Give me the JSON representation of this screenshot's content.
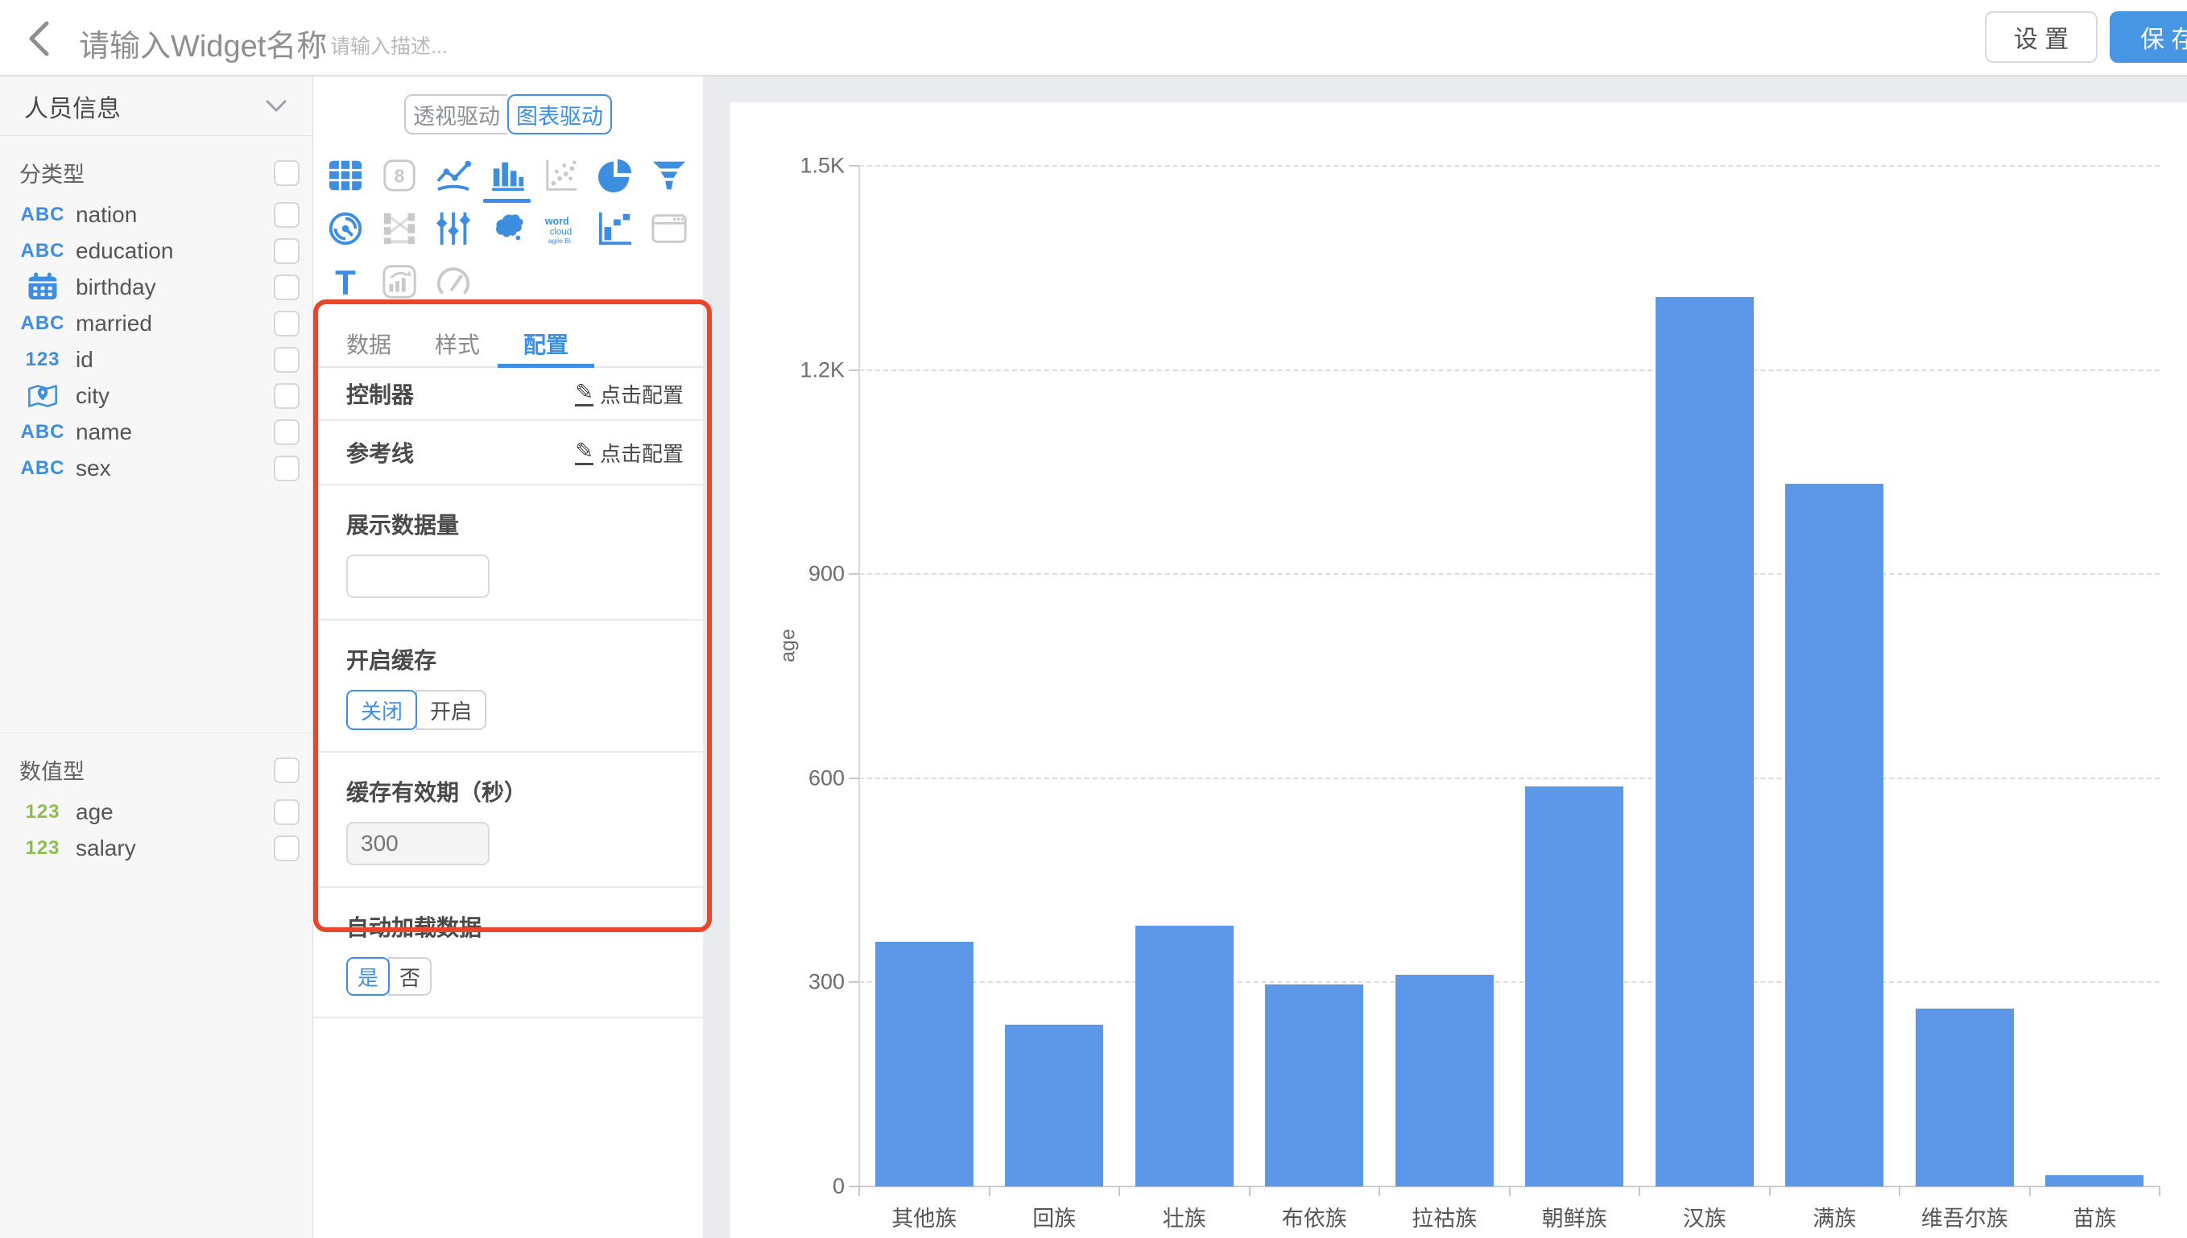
{
  "header": {
    "title_placeholder": "请输入Widget名称",
    "desc_placeholder": "请输入描述...",
    "settings_label": "设 置",
    "save_label": "保 存"
  },
  "sidebar": {
    "dataset_name": "人员信息",
    "sections": [
      {
        "label": "分类型",
        "fields": [
          {
            "name": "nation",
            "type": "abc",
            "color": "#3d8ee0"
          },
          {
            "name": "education",
            "type": "abc",
            "color": "#3d8ee0"
          },
          {
            "name": "birthday",
            "type": "calendar",
            "color": "#3d8ee0"
          },
          {
            "name": "married",
            "type": "abc",
            "color": "#3d8ee0"
          },
          {
            "name": "id",
            "type": "num",
            "color": "#3d8ee0"
          },
          {
            "name": "city",
            "type": "geo",
            "color": "#3d8ee0"
          },
          {
            "name": "name",
            "type": "abc",
            "color": "#3d8ee0"
          },
          {
            "name": "sex",
            "type": "abc",
            "color": "#3d8ee0"
          }
        ]
      },
      {
        "label": "数值型",
        "fields": [
          {
            "name": "age",
            "type": "num",
            "color": "#8cbf4a"
          },
          {
            "name": "salary",
            "type": "num",
            "color": "#8cbf4a"
          }
        ]
      }
    ]
  },
  "panel": {
    "modes": [
      "透视驱动",
      "图表驱动"
    ],
    "selected_mode_index": 1,
    "chart_types": [
      {
        "name": "table",
        "state": "enabled"
      },
      {
        "name": "number",
        "state": "disabled"
      },
      {
        "name": "line",
        "state": "enabled"
      },
      {
        "name": "bar",
        "state": "selected"
      },
      {
        "name": "scatter",
        "state": "disabled"
      },
      {
        "name": "pie",
        "state": "enabled"
      },
      {
        "name": "funnel",
        "state": "enabled"
      },
      {
        "name": "radar",
        "state": "enabled"
      },
      {
        "name": "sankey",
        "state": "disabled"
      },
      {
        "name": "parallel",
        "state": "enabled"
      },
      {
        "name": "china-map",
        "state": "enabled"
      },
      {
        "name": "wordcloud",
        "state": "enabled"
      },
      {
        "name": "waterfall",
        "state": "enabled"
      },
      {
        "name": "iframe",
        "state": "disabled"
      },
      {
        "name": "text",
        "state": "enabled"
      },
      {
        "name": "richtext",
        "state": "disabled"
      },
      {
        "name": "gauge",
        "state": "disabled"
      }
    ],
    "tabs": [
      "数据",
      "样式",
      "配置"
    ],
    "active_tab_index": 2,
    "controller": {
      "label": "控制器",
      "link": "点击配置"
    },
    "reference_line": {
      "label": "参考线",
      "link": "点击配置"
    },
    "display_count": {
      "label": "展示数据量",
      "value": ""
    },
    "cache_toggle": {
      "label": "开启缓存",
      "options": [
        "关闭",
        "开启"
      ],
      "selected_index": 0
    },
    "cache_expiry": {
      "label": "缓存有效期（秒）",
      "placeholder": "300",
      "disabled": true
    },
    "auto_load": {
      "label": "自动加载数据",
      "options": [
        "是",
        "否"
      ],
      "selected_index": 0
    }
  },
  "annotation": {
    "highlight_color": "#e8472e"
  },
  "chart_data": {
    "type": "bar",
    "title": "",
    "categories": [
      "其他族",
      "回族",
      "壮族",
      "布依族",
      "拉祜族",
      "朝鲜族",
      "汉族",
      "满族",
      "维吾尔族",
      "苗族"
    ],
    "values": [
      360,
      238,
      383,
      297,
      311,
      588,
      1307,
      1033,
      262,
      16
    ],
    "xlabel": "",
    "ylabel": "age",
    "ylim": [
      0,
      1500
    ],
    "yticks": [
      {
        "v": 0,
        "label": "0"
      },
      {
        "v": 300,
        "label": "300"
      },
      {
        "v": 600,
        "label": "600"
      },
      {
        "v": 900,
        "label": "900"
      },
      {
        "v": 1200,
        "label": "1.2K"
      },
      {
        "v": 1500,
        "label": "1.5K"
      }
    ],
    "grid": "dashed-horizontal",
    "legend": "none",
    "bar_color": "#5d97e8"
  },
  "colors": {
    "accent": "#3b8fe6",
    "bar": "#5d97e8",
    "annotation_red": "#e8472e",
    "numeric_green": "#8cbf4a",
    "string_blue": "#3d8ee0",
    "disabled_icon": "#c9c9c9"
  }
}
